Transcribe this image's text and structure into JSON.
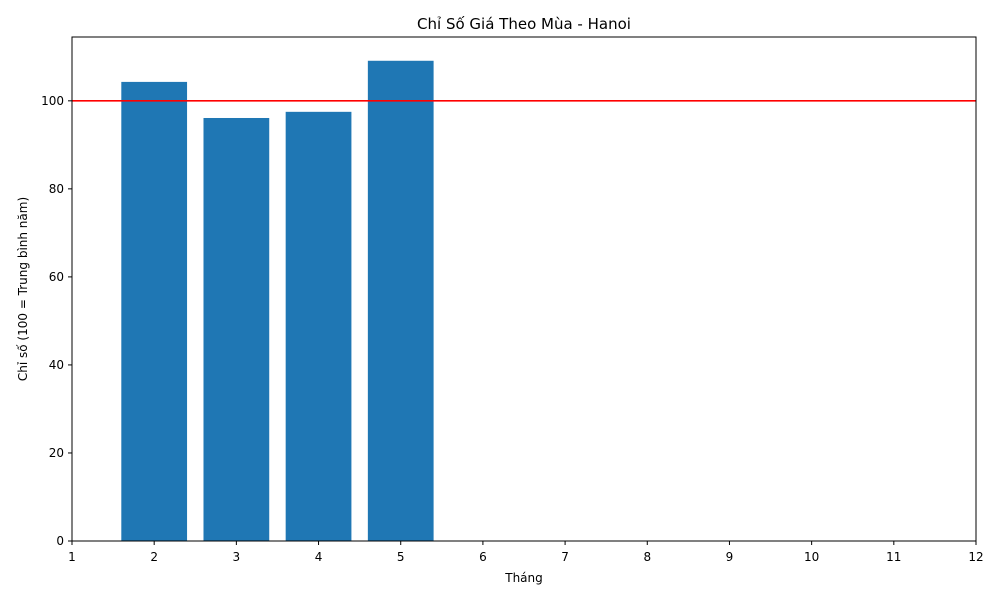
{
  "chart_data": {
    "type": "bar",
    "title": "Chỉ Số Giá Theo Mùa - Hanoi",
    "xlabel": "Tháng",
    "ylabel": "Chỉ số (100 = Trung bình năm)",
    "x": [
      2,
      3,
      4,
      5
    ],
    "values": [
      104.3,
      96.1,
      97.5,
      109.1
    ],
    "xlim": [
      1,
      12
    ],
    "ylim": [
      0,
      114.5
    ],
    "xticks": [
      "1",
      "2",
      "3",
      "4",
      "5",
      "6",
      "7",
      "8",
      "9",
      "10",
      "11",
      "12"
    ],
    "yticks": [
      "0",
      "20",
      "40",
      "60",
      "80",
      "100"
    ],
    "reference_line": {
      "value": 100,
      "color": "#ff0000"
    },
    "bar_color": "#1f77b4",
    "grid": false,
    "bar_width": 0.8
  }
}
